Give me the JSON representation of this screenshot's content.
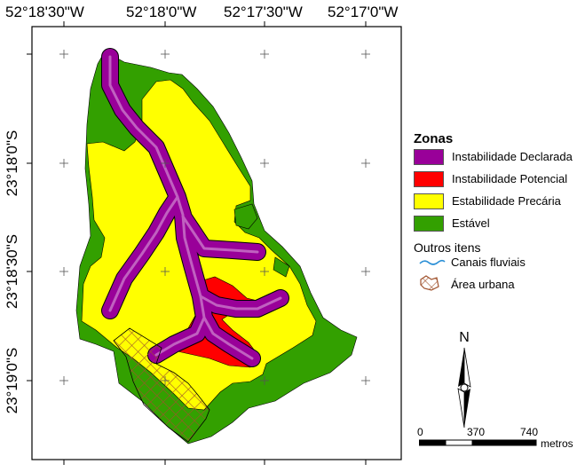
{
  "map": {
    "top_labels": [
      "52°18'30\"W",
      "52°18'0\"W",
      "52°17'30\"W",
      "52°17'0\"W"
    ],
    "left_labels": [
      "23°18'0\"S",
      "23°18'30\"S",
      "23°19'0\"S"
    ]
  },
  "legend": {
    "title": "Zonas",
    "items": [
      {
        "label": "Instabilidade Declarada",
        "color": "#990099"
      },
      {
        "label": "Instabilidade Potencial",
        "color": "#ff0000"
      },
      {
        "label": "Estabilidade Precária",
        "color": "#ffff00"
      },
      {
        "label": "Estável",
        "color": "#33a000"
      }
    ],
    "others_title": "Outros itens",
    "others": [
      {
        "label": "Canais fluviais",
        "color": "#2a8fd6"
      },
      {
        "label": "Área urbana",
        "color": "#a0522d"
      }
    ]
  },
  "north_arrow": {
    "label": "N"
  },
  "scale": {
    "labels": [
      "0",
      "370",
      "740"
    ],
    "units": "metros"
  }
}
